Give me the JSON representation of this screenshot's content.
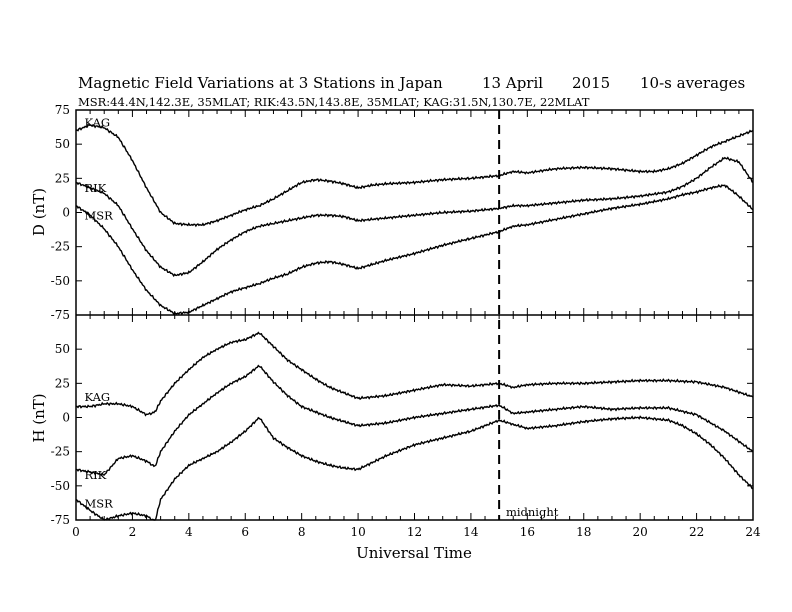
{
  "title": {
    "main": "Magnetic Field Variations at 3 Stations in Japan",
    "date": "13  April",
    "year": "2015",
    "averaging": "10-s averages"
  },
  "subtitle": "MSR:44.4N,142.3E, 35MLAT;  RIK:43.5N,143.8E, 35MLAT;  KAG:31.5N,130.7E, 22MLAT",
  "colors": {
    "line": "#000000",
    "background": "#ffffff"
  },
  "chart_data": [
    {
      "type": "line",
      "panel": "D",
      "ylabel": "D (nT)",
      "xlim": [
        0,
        24
      ],
      "ylim": [
        -75,
        75
      ],
      "yticks": [
        75,
        50,
        25,
        0,
        -25,
        -50,
        -75
      ],
      "series": [
        {
          "name": "KAG",
          "x": [
            0,
            0.5,
            1,
            1.5,
            2,
            2.5,
            3,
            3.5,
            4,
            4.5,
            5,
            5.5,
            6,
            6.5,
            7,
            7.5,
            8,
            8.5,
            9,
            9.5,
            10,
            10.5,
            11,
            12,
            13,
            14,
            15,
            15.5,
            16,
            17,
            18,
            19,
            20,
            20.5,
            21,
            21.5,
            22,
            22.5,
            23,
            23.5,
            24
          ],
          "y": [
            60,
            64,
            62,
            55,
            38,
            18,
            0,
            -8,
            -9,
            -9,
            -6,
            -2,
            2,
            5,
            10,
            16,
            22,
            24,
            23,
            21,
            18,
            20,
            21,
            22,
            24,
            25,
            27,
            30,
            29,
            32,
            33,
            32,
            30,
            30,
            32,
            36,
            42,
            48,
            52,
            56,
            60
          ]
        },
        {
          "name": "RIK",
          "x": [
            0,
            0.5,
            1,
            1.5,
            2,
            2.5,
            3,
            3.5,
            4,
            4.5,
            5,
            5.5,
            6,
            6.5,
            7,
            7.5,
            8,
            8.5,
            9,
            9.5,
            10,
            11,
            12,
            13,
            14,
            15,
            15.5,
            16,
            17,
            18,
            19,
            20,
            21,
            21.5,
            22,
            22.5,
            23,
            23.5,
            24
          ],
          "y": [
            22,
            18,
            14,
            5,
            -12,
            -28,
            -40,
            -46,
            -44,
            -36,
            -27,
            -20,
            -14,
            -10,
            -8,
            -6,
            -4,
            -2,
            -2,
            -3,
            -6,
            -4,
            -2,
            0,
            1,
            3,
            5,
            5,
            7,
            9,
            10,
            12,
            15,
            19,
            25,
            33,
            40,
            37,
            22
          ]
        },
        {
          "name": "MSR",
          "x": [
            0,
            0.5,
            1,
            1.5,
            2,
            2.5,
            3,
            3.5,
            4,
            4.5,
            5,
            5.5,
            6,
            6.5,
            7,
            7.5,
            8,
            8.5,
            9,
            9.5,
            10,
            10.5,
            11,
            12,
            13,
            14,
            15,
            15.5,
            16,
            17,
            18,
            19,
            20,
            20.5,
            21,
            21.5,
            22,
            22.5,
            23,
            23.5,
            24
          ],
          "y": [
            5,
            -2,
            -12,
            -25,
            -42,
            -57,
            -68,
            -74,
            -73,
            -68,
            -63,
            -58,
            -55,
            -52,
            -48,
            -45,
            -40,
            -37,
            -36,
            -38,
            -41,
            -38,
            -35,
            -30,
            -24,
            -19,
            -14,
            -10,
            -9,
            -5,
            -1,
            3,
            6,
            8,
            10,
            13,
            15,
            18,
            20,
            12,
            2
          ]
        }
      ],
      "labels": [
        {
          "text": "KAG",
          "x": 0.3,
          "y": 63
        },
        {
          "text": "RIK",
          "x": 0.3,
          "y": 15
        },
        {
          "text": "MSR",
          "x": 0.3,
          "y": -5
        }
      ]
    },
    {
      "type": "line",
      "panel": "H",
      "ylabel": "H (nT)",
      "xlabel": "Universal Time",
      "xlim": [
        0,
        24
      ],
      "ylim": [
        -75,
        75
      ],
      "xticks": [
        0,
        2,
        4,
        6,
        8,
        10,
        12,
        14,
        16,
        18,
        20,
        22,
        24
      ],
      "yticks": [
        50,
        25,
        0,
        -25,
        -50,
        -75
      ],
      "series": [
        {
          "name": "KAG",
          "x": [
            0,
            0.5,
            1,
            1.5,
            2,
            2.5,
            2.8,
            3,
            3.5,
            4,
            4.5,
            5,
            5.5,
            6,
            6.5,
            7,
            7.5,
            8,
            8.5,
            9,
            9.5,
            10,
            11,
            12,
            13,
            14,
            15,
            15.5,
            16,
            17,
            18,
            19,
            20,
            21,
            22,
            23,
            24
          ],
          "y": [
            8,
            8,
            10,
            10,
            8,
            2,
            4,
            12,
            25,
            35,
            44,
            50,
            55,
            57,
            62,
            52,
            42,
            35,
            28,
            22,
            18,
            14,
            16,
            20,
            24,
            23,
            25,
            22,
            24,
            25,
            25,
            26,
            27,
            27,
            26,
            22,
            15
          ]
        },
        {
          "name": "RIK",
          "x": [
            0,
            0.5,
            1,
            1.5,
            2,
            2.5,
            2.8,
            3,
            3.5,
            4,
            4.5,
            5,
            5.5,
            6,
            6.5,
            7,
            7.5,
            8,
            8.5,
            9,
            9.5,
            10,
            11,
            12,
            13,
            14,
            15,
            15.5,
            16,
            17,
            18,
            19,
            20,
            21,
            22,
            23,
            24
          ],
          "y": [
            -38,
            -40,
            -42,
            -30,
            -28,
            -32,
            -36,
            -25,
            -10,
            2,
            10,
            18,
            25,
            30,
            38,
            26,
            16,
            8,
            4,
            0,
            -3,
            -6,
            -4,
            0,
            3,
            6,
            9,
            3,
            4,
            6,
            8,
            6,
            7,
            7,
            2,
            -10,
            -25
          ]
        },
        {
          "name": "MSR",
          "x": [
            0,
            0.5,
            1,
            1.5,
            2,
            2.5,
            2.8,
            3,
            3.5,
            4,
            4.5,
            5,
            5.5,
            6,
            6.5,
            7,
            7.5,
            8,
            8.5,
            9,
            9.5,
            10,
            11,
            12,
            13,
            14,
            15,
            15.5,
            16,
            17,
            18,
            19,
            20,
            21,
            21.5,
            22,
            22.5,
            23,
            23.5,
            24
          ],
          "y": [
            -60,
            -68,
            -75,
            -72,
            -70,
            -72,
            -76,
            -60,
            -45,
            -35,
            -30,
            -25,
            -18,
            -10,
            0,
            -15,
            -22,
            -28,
            -32,
            -35,
            -37,
            -38,
            -28,
            -20,
            -15,
            -10,
            -2,
            -5,
            -8,
            -6,
            -3,
            -1,
            0,
            -2,
            -6,
            -12,
            -20,
            -30,
            -42,
            -52
          ]
        }
      ],
      "labels": [
        {
          "text": "KAG",
          "x": 0.3,
          "y": 12
        },
        {
          "text": "RIK",
          "x": 0.3,
          "y": -45
        },
        {
          "text": "MSR",
          "x": 0.3,
          "y": -66
        }
      ],
      "annotations": [
        {
          "text": "midnight",
          "x": 15.1,
          "y": -72
        }
      ]
    }
  ],
  "reference_line": {
    "x": 15,
    "style": "dashed"
  }
}
